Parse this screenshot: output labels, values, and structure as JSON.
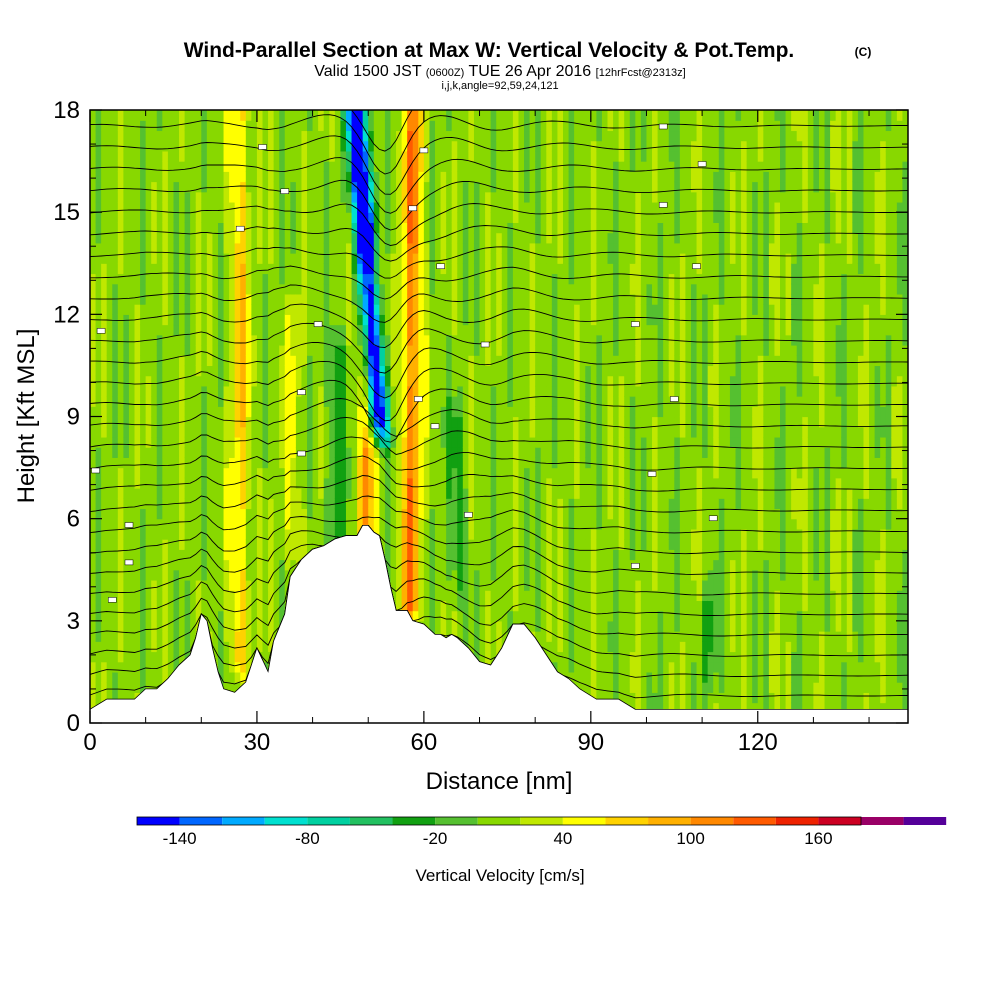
{
  "chart_data": {
    "type": "heatmap",
    "title": "Wind-Parallel Section at Max W: Vertical Velocity & Pot.Temp.",
    "title_mark": "(C)",
    "subtitle": {
      "valid_text": "Valid 1500 JST",
      "utc_text": "(0600Z)",
      "date_text": "TUE 26 Apr 2016",
      "fcst_text": "[12hrFcst@2313z]"
    },
    "params_line": "i,j,k,angle=92,59,24,121",
    "xlabel": "Distance [nm]",
    "ylabel": "Height [Kft MSL]",
    "xlim": [
      0,
      147
    ],
    "ylim": [
      0,
      18
    ],
    "x_ticks": [
      "0",
      "30",
      "60",
      "90",
      "120"
    ],
    "y_ticks": [
      "0",
      "3",
      "6",
      "9",
      "12",
      "15",
      "18"
    ],
    "x_tick_values": [
      0,
      30,
      60,
      90,
      120
    ],
    "y_tick_values": [
      0,
      3,
      6,
      9,
      12,
      15,
      18
    ],
    "colorbar": {
      "label": "Vertical Velocity [cm/s]",
      "tick_labels": [
        "-140",
        "-80",
        "-20",
        "40",
        "100",
        "160"
      ],
      "tick_values": [
        -140,
        -80,
        -20,
        40,
        100,
        160
      ],
      "range": [
        -160,
        180
      ],
      "bin_width": 20,
      "colors": [
        "#0000ff",
        "#0066ff",
        "#00aaff",
        "#00e0d0",
        "#00d0a0",
        "#22c060",
        "#11a011",
        "#55c030",
        "#88d800",
        "#c0e800",
        "#ffff00",
        "#ffd200",
        "#ffb000",
        "#ff8800",
        "#ff5a00",
        "#ee2200",
        "#cc0022",
        "#990066",
        "#550099"
      ]
    },
    "terrain_kft": [
      [
        0,
        0.4
      ],
      [
        3,
        0.7
      ],
      [
        8,
        0.7
      ],
      [
        10,
        1.0
      ],
      [
        12,
        1.0
      ],
      [
        14,
        1.3
      ],
      [
        16,
        1.7
      ],
      [
        18,
        2.0
      ],
      [
        19,
        2.5
      ],
      [
        20,
        3.2
      ],
      [
        21,
        3.0
      ],
      [
        22,
        2.2
      ],
      [
        23,
        1.5
      ],
      [
        24,
        1.0
      ],
      [
        26,
        0.9
      ],
      [
        28,
        1.2
      ],
      [
        29,
        1.7
      ],
      [
        30,
        2.2
      ],
      [
        32,
        1.5
      ],
      [
        33,
        2.4
      ],
      [
        35,
        3.2
      ],
      [
        36,
        4.3
      ],
      [
        38,
        4.8
      ],
      [
        40,
        5.1
      ],
      [
        42,
        5.2
      ],
      [
        44,
        5.4
      ],
      [
        46,
        5.5
      ],
      [
        48,
        5.5
      ],
      [
        49,
        5.8
      ],
      [
        50,
        5.8
      ],
      [
        51,
        5.6
      ],
      [
        52,
        5.5
      ],
      [
        53,
        4.8
      ],
      [
        54,
        4.0
      ],
      [
        55,
        3.3
      ],
      [
        56,
        3.3
      ],
      [
        57,
        3.3
      ],
      [
        58,
        3.0
      ],
      [
        60,
        2.9
      ],
      [
        62,
        2.6
      ],
      [
        63,
        2.6
      ],
      [
        64,
        2.5
      ],
      [
        65,
        2.6
      ],
      [
        66,
        2.5
      ],
      [
        68,
        2.2
      ],
      [
        70,
        1.8
      ],
      [
        72,
        1.7
      ],
      [
        74,
        2.2
      ],
      [
        76,
        2.9
      ],
      [
        78,
        2.9
      ],
      [
        80,
        2.5
      ],
      [
        82,
        2.0
      ],
      [
        84,
        1.5
      ],
      [
        86,
        1.3
      ],
      [
        88,
        1.0
      ],
      [
        91,
        0.7
      ],
      [
        95,
        0.7
      ],
      [
        98,
        0.4
      ],
      [
        147,
        0.4
      ]
    ],
    "w_field": {
      "x_unit": "nm",
      "z_unit": "kft",
      "background_w": 10,
      "plumes": [
        {
          "x": 51.5,
          "z_min": 9.0,
          "z_max": 18.0,
          "w": -140,
          "tilt_nm_per_kft": -0.4
        },
        {
          "x": 52.5,
          "z_min": 8.5,
          "z_max": 18.0,
          "w": -80,
          "tilt_nm_per_kft": -0.5
        },
        {
          "x": 57.5,
          "z_min": 3.5,
          "z_max": 18.0,
          "w": 100,
          "tilt_nm_per_kft": 0.05
        },
        {
          "x": 49.5,
          "z_min": 5.0,
          "z_max": 13.0,
          "w": 80,
          "tilt_nm_per_kft": 0.1
        },
        {
          "x": 27.0,
          "z_min": 2.0,
          "z_max": 18.0,
          "w": 60,
          "tilt_nm_per_kft": 0.0
        },
        {
          "x": 44.0,
          "z_min": 5.5,
          "z_max": 11.0,
          "w": -40,
          "tilt_nm_per_kft": 0.1
        },
        {
          "x": 66.0,
          "z_min": 4.0,
          "z_max": 9.0,
          "w": -30,
          "tilt_nm_per_kft": 0.0
        },
        {
          "x": 111.0,
          "z_min": 1.5,
          "z_max": 3.5,
          "w": -30,
          "tilt_nm_per_kft": 0.0
        },
        {
          "x": 36.0,
          "z_min": 5.0,
          "z_max": 12.0,
          "w": 30,
          "tilt_nm_per_kft": 0.1
        }
      ]
    },
    "theta_contours": {
      "count": 30,
      "marked_values": [
        {
          "x": 2,
          "z": 11.5
        },
        {
          "x": 1,
          "z": 7.4
        },
        {
          "x": 7,
          "z": 5.8
        },
        {
          "x": 7,
          "z": 4.7
        },
        {
          "x": 4,
          "z": 3.6
        },
        {
          "x": 27,
          "z": 14.5
        },
        {
          "x": 31,
          "z": 16.9
        },
        {
          "x": 35,
          "z": 15.6
        },
        {
          "x": 41,
          "z": 11.7
        },
        {
          "x": 38,
          "z": 9.7
        },
        {
          "x": 38,
          "z": 7.9
        },
        {
          "x": 60,
          "z": 16.8
        },
        {
          "x": 58,
          "z": 15.1
        },
        {
          "x": 63,
          "z": 13.4
        },
        {
          "x": 71,
          "z": 11.1
        },
        {
          "x": 59,
          "z": 9.5
        },
        {
          "x": 62,
          "z": 8.7
        },
        {
          "x": 68,
          "z": 6.1
        },
        {
          "x": 103,
          "z": 17.5
        },
        {
          "x": 110,
          "z": 16.4
        },
        {
          "x": 103,
          "z": 15.2
        },
        {
          "x": 109,
          "z": 13.4
        },
        {
          "x": 98,
          "z": 11.7
        },
        {
          "x": 105,
          "z": 9.5
        },
        {
          "x": 101,
          "z": 7.3
        },
        {
          "x": 112,
          "z": 6.0
        },
        {
          "x": 98,
          "z": 4.6
        }
      ]
    }
  }
}
